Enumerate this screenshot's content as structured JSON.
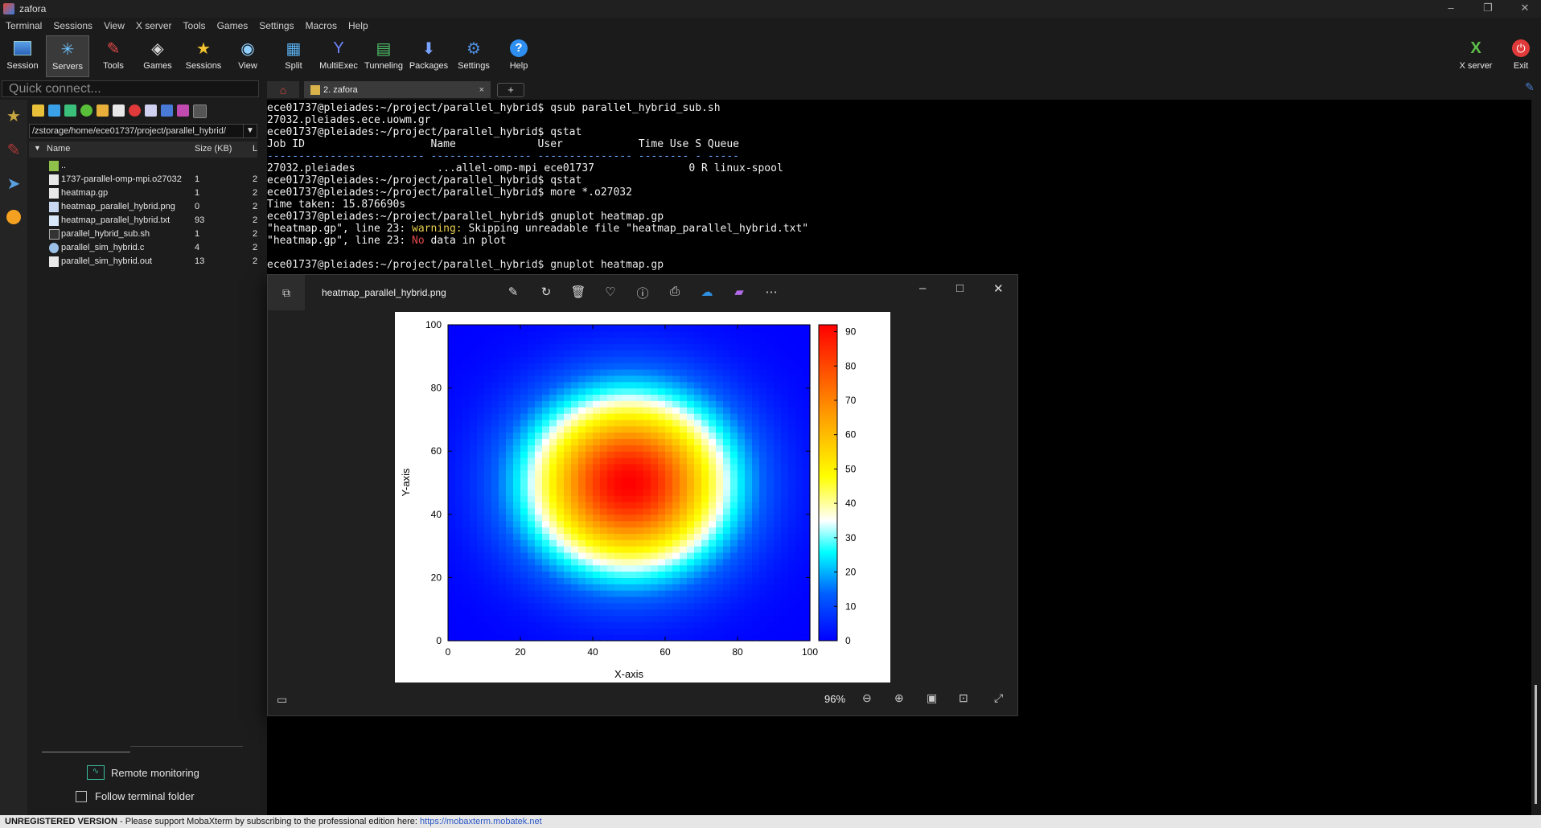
{
  "window": {
    "title": "zafora"
  },
  "menubar": [
    "Terminal",
    "Sessions",
    "View",
    "X server",
    "Tools",
    "Games",
    "Settings",
    "Macros",
    "Help"
  ],
  "toolbar": {
    "buttons": [
      {
        "label": "Session"
      },
      {
        "label": "Servers"
      },
      {
        "label": "Tools"
      },
      {
        "label": "Games"
      },
      {
        "label": "Sessions"
      },
      {
        "label": "View"
      },
      {
        "label": "Split"
      },
      {
        "label": "MultiExec"
      },
      {
        "label": "Tunneling"
      },
      {
        "label": "Packages"
      },
      {
        "label": "Settings"
      },
      {
        "label": "Help"
      }
    ],
    "right": [
      {
        "label": "X server"
      },
      {
        "label": "Exit"
      }
    ]
  },
  "quick_connect": {
    "placeholder": "Quick connect..."
  },
  "file_panel": {
    "path": "/zstorage/home/ece01737/project/parallel_hybrid/",
    "columns": {
      "name": "Name",
      "size": "Size (KB)",
      "last": "L"
    },
    "rows": [
      {
        "name": "..",
        "size": "",
        "x": ""
      },
      {
        "name": "1737-parallel-omp-mpi.o27032",
        "size": "1",
        "x": "2"
      },
      {
        "name": "heatmap.gp",
        "size": "1",
        "x": "2"
      },
      {
        "name": "heatmap_parallel_hybrid.png",
        "size": "0",
        "x": "2"
      },
      {
        "name": "heatmap_parallel_hybrid.txt",
        "size": "93",
        "x": "2"
      },
      {
        "name": "parallel_hybrid_sub.sh",
        "size": "1",
        "x": "2"
      },
      {
        "name": "parallel_sim_hybrid.c",
        "size": "4",
        "x": "2"
      },
      {
        "name": "parallel_sim_hybrid.out",
        "size": "13",
        "x": "2"
      }
    ],
    "remote_monitoring": "Remote monitoring",
    "follow_terminal": "Follow terminal folder"
  },
  "tabs": {
    "active_label": "2. zafora",
    "close": "×",
    "add": "+"
  },
  "terminal": {
    "lines": [
      "ece01737@pleiades:~/project/parallel_hybrid$ qsub parallel_hybrid_sub.sh",
      "27032.pleiades.ece.uowm.gr",
      "ece01737@pleiades:~/project/parallel_hybrid$ qstat",
      "Job ID                    Name             User            Time Use S Queue",
      "------------------------- ---------------- --------------- -------- - -----",
      "27032.pleiades             ...allel-omp-mpi ece01737               0 R linux-spool",
      "ece01737@pleiades:~/project/parallel_hybrid$ qstat",
      "ece01737@pleiades:~/project/parallel_hybrid$ more *.o27032",
      "Time taken: 15.876690s",
      "ece01737@pleiades:~/project/parallel_hybrid$ gnuplot heatmap.gp"
    ],
    "warn_line": {
      "prefix": "\"heatmap.gp\", line 23: ",
      "warn": "warning:",
      "rest": " Skipping unreadable file \"heatmap_parallel_hybrid.txt\""
    },
    "nodata_line": {
      "prefix": "\"heatmap.gp\", line 23: ",
      "no": "No",
      "rest": " data in plot"
    },
    "last_line": "ece01737@pleiades:~/project/parallel_hybrid$ gnuplot heatmap.gp"
  },
  "viewer": {
    "title": "heatmap_parallel_hybrid.png",
    "zoom": "96%",
    "chart_data": {
      "type": "heatmap",
      "xlabel": "X-axis",
      "ylabel": "Y-axis",
      "xlim": [
        0,
        100
      ],
      "ylim": [
        0,
        100
      ],
      "x_ticks": [
        "0",
        "20",
        "40",
        "60",
        "80",
        "100"
      ],
      "y_ticks": [
        "0",
        "20",
        "40",
        "60",
        "80",
        "100"
      ],
      "colorbar_ticks": [
        "0",
        "10",
        "20",
        "30",
        "40",
        "50",
        "60",
        "70",
        "80",
        "90"
      ],
      "cbrange": [
        0,
        92
      ],
      "peak": {
        "x": 50,
        "y": 50,
        "value": 92
      }
    }
  },
  "status_bar": {
    "unregistered": "UNREGISTERED VERSION",
    "message": "  -  Please support MobaXterm by subscribing to the professional edition here:  ",
    "link": "https://mobaxterm.mobatek.net"
  }
}
